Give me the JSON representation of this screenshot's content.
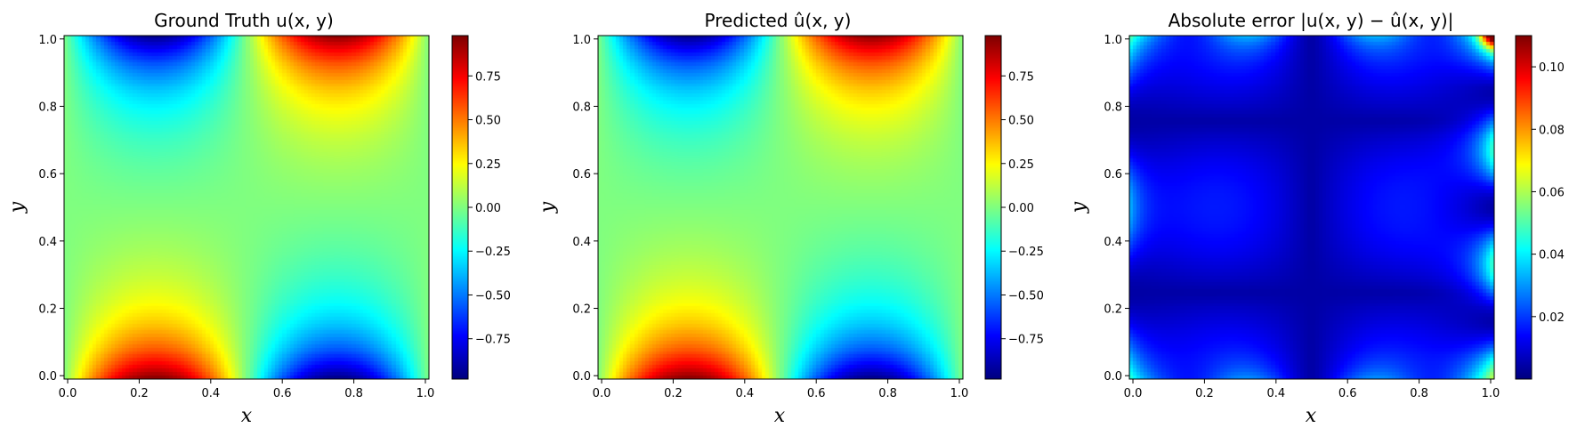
{
  "chart_data": [
    {
      "type": "heatmap",
      "title": "Ground Truth u(x, y)",
      "xlabel": "x",
      "ylabel": "y",
      "xlim": [
        0,
        1
      ],
      "ylim": [
        0,
        1
      ],
      "x_ticks": [
        "0.0",
        "0.2",
        "0.4",
        "0.6",
        "0.8",
        "1.0"
      ],
      "y_ticks": [
        "0.0",
        "0.2",
        "0.4",
        "0.6",
        "0.8",
        "1.0"
      ],
      "colormap": "jet",
      "colorbar": {
        "range": [
          -0.98,
          0.98
        ],
        "ticks": [
          -0.75,
          -0.5,
          -0.25,
          0.0,
          0.25,
          0.5,
          0.75
        ],
        "tick_labels": [
          "−0.75",
          "−0.50",
          "−0.25",
          "0.00",
          "0.25",
          "0.50",
          "0.75"
        ]
      }
    },
    {
      "type": "heatmap",
      "title": "Predicted û(x, y)",
      "xlabel": "x",
      "ylabel": "y",
      "xlim": [
        0,
        1
      ],
      "ylim": [
        0,
        1
      ],
      "x_ticks": [
        "0.0",
        "0.2",
        "0.4",
        "0.6",
        "0.8",
        "1.0"
      ],
      "y_ticks": [
        "0.0",
        "0.2",
        "0.4",
        "0.6",
        "0.8",
        "1.0"
      ],
      "colormap": "jet",
      "colorbar": {
        "range": [
          -0.98,
          0.98
        ],
        "ticks": [
          -0.75,
          -0.5,
          -0.25,
          0.0,
          0.25,
          0.5,
          0.75
        ],
        "tick_labels": [
          "−0.75",
          "−0.50",
          "−0.25",
          "0.00",
          "0.25",
          "0.50",
          "0.75"
        ]
      }
    },
    {
      "type": "heatmap",
      "title": "Absolute error |u(x, y) − û(x, y)|",
      "xlabel": "x",
      "ylabel": "y",
      "xlim": [
        0,
        1
      ],
      "ylim": [
        0,
        1
      ],
      "x_ticks": [
        "0.0",
        "0.2",
        "0.4",
        "0.6",
        "0.8",
        "1.0"
      ],
      "y_ticks": [
        "0.0",
        "0.2",
        "0.4",
        "0.6",
        "0.8",
        "1.0"
      ],
      "colormap": "jet",
      "colorbar": {
        "range": [
          0.0,
          0.11
        ],
        "ticks": [
          0.02,
          0.04,
          0.06,
          0.08,
          0.1
        ],
        "tick_labels": [
          "0.02",
          "0.04",
          "0.06",
          "0.08",
          "0.10"
        ]
      }
    }
  ]
}
